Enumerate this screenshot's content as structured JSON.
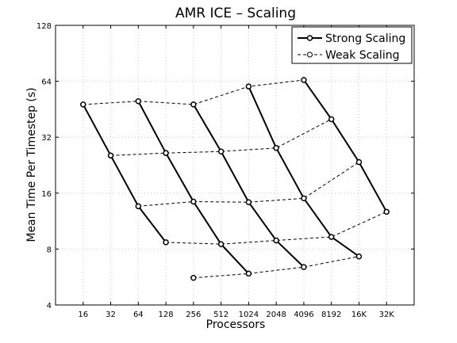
{
  "chart_data": {
    "type": "line",
    "title": "AMR ICE – Scaling",
    "xlabel": "Processors",
    "ylabel": "Mean Time Per Timestep (s)",
    "y_scale": "log2",
    "ylim": [
      4,
      128
    ],
    "y_ticks": [
      4,
      8,
      16,
      32,
      64,
      128
    ],
    "grid": true,
    "legend_position": "top-right",
    "categories": [
      "16",
      "32",
      "64",
      "128",
      "256",
      "512",
      "1024",
      "2048",
      "4096",
      "8192",
      "16K",
      "32K"
    ],
    "legend": [
      {
        "name": "Strong Scaling",
        "style": "solid"
      },
      {
        "name": "Weak Scaling",
        "style": "dashed"
      }
    ],
    "strong_series": [
      {
        "points": [
          {
            "x": "16",
            "y": 48
          },
          {
            "x": "32",
            "y": 25.5
          },
          {
            "x": "64",
            "y": 13.6
          },
          {
            "x": "128",
            "y": 8.7
          }
        ]
      },
      {
        "points": [
          {
            "x": "64",
            "y": 50
          },
          {
            "x": "128",
            "y": 26.3
          },
          {
            "x": "256",
            "y": 14.4
          },
          {
            "x": "512",
            "y": 8.5
          },
          {
            "x": "1024",
            "y": 5.9
          }
        ]
      },
      {
        "points": [
          {
            "x": "256",
            "y": 48
          },
          {
            "x": "512",
            "y": 26.8
          },
          {
            "x": "1024",
            "y": 14.3
          },
          {
            "x": "2048",
            "y": 8.9
          },
          {
            "x": "4096",
            "y": 6.4
          }
        ]
      },
      {
        "points": [
          {
            "x": "1024",
            "y": 60
          },
          {
            "x": "2048",
            "y": 28
          },
          {
            "x": "4096",
            "y": 15
          },
          {
            "x": "8192",
            "y": 9.3
          },
          {
            "x": "16K",
            "y": 7.3
          }
        ]
      },
      {
        "points": [
          {
            "x": "4096",
            "y": 65
          },
          {
            "x": "8192",
            "y": 40
          },
          {
            "x": "16K",
            "y": 23.5
          },
          {
            "x": "32K",
            "y": 12.7
          }
        ]
      }
    ],
    "weak_series": [
      {
        "points": [
          {
            "x": "16",
            "y": 48
          },
          {
            "x": "64",
            "y": 50
          },
          {
            "x": "256",
            "y": 48
          },
          {
            "x": "1024",
            "y": 60
          },
          {
            "x": "4096",
            "y": 65
          }
        ]
      },
      {
        "points": [
          {
            "x": "32",
            "y": 25.5
          },
          {
            "x": "128",
            "y": 26.3
          },
          {
            "x": "512",
            "y": 26.8
          },
          {
            "x": "2048",
            "y": 28
          },
          {
            "x": "8192",
            "y": 40
          }
        ]
      },
      {
        "points": [
          {
            "x": "64",
            "y": 13.6
          },
          {
            "x": "256",
            "y": 14.4
          },
          {
            "x": "1024",
            "y": 14.3
          },
          {
            "x": "4096",
            "y": 15
          },
          {
            "x": "16K",
            "y": 23.5
          }
        ]
      },
      {
        "points": [
          {
            "x": "128",
            "y": 8.7
          },
          {
            "x": "512",
            "y": 8.5
          },
          {
            "x": "2048",
            "y": 8.9
          },
          {
            "x": "8192",
            "y": 9.3
          },
          {
            "x": "32K",
            "y": 12.7
          }
        ]
      },
      {
        "points": [
          {
            "x": "256",
            "y": 5.6
          },
          {
            "x": "1024",
            "y": 5.9
          },
          {
            "x": "4096",
            "y": 6.4
          },
          {
            "x": "16K",
            "y": 7.3
          }
        ]
      }
    ],
    "colors": {
      "line": "#000000",
      "grid": "#c8c8c8",
      "background": "#ffffff"
    }
  }
}
